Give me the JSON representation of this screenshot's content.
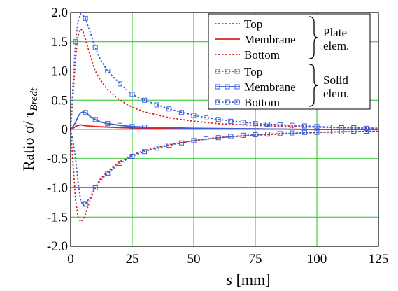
{
  "chart_data": {
    "type": "line",
    "title": "",
    "xlabel": "s",
    "xlabel_unit": "[mm]",
    "ylabel_prefix": "Ratio σ/ τ",
    "ylabel_sub": "Bredt",
    "xlim": [
      0,
      125
    ],
    "ylim": [
      -2.0,
      2.0
    ],
    "x_ticks": [
      0,
      25,
      50,
      75,
      100,
      125
    ],
    "y_ticks": [
      -2.0,
      -1.5,
      -1.0,
      -0.5,
      0,
      0.5,
      1.0,
      1.5,
      2.0
    ],
    "x_tick_labels": [
      "0",
      "25",
      "50",
      "75",
      "100",
      "125"
    ],
    "y_tick_labels": [
      "-2.0",
      "-1.5",
      "-1.0",
      "-0.5",
      "0",
      "0.5",
      "1.0",
      "1.5",
      "2.0"
    ],
    "grid": true,
    "legend_position": "top-right",
    "legend_groups": [
      {
        "label_line1": "Plate",
        "label_line2": "elem."
      },
      {
        "label_line1": "Solid",
        "label_line2": "elem."
      }
    ],
    "series": [
      {
        "name": "Top",
        "group": 0,
        "color": "#e02020",
        "style": "dotted",
        "marker": "none",
        "x": [
          0,
          1,
          2,
          3,
          4,
          5,
          6,
          8,
          10,
          12,
          15,
          20,
          25,
          30,
          40,
          50,
          60,
          75,
          90,
          100,
          110,
          125
        ],
        "y": [
          0,
          0.6,
          1.2,
          1.6,
          1.72,
          1.68,
          1.55,
          1.25,
          1.0,
          0.85,
          0.68,
          0.5,
          0.38,
          0.3,
          0.2,
          0.14,
          0.1,
          0.07,
          0.05,
          0.04,
          0.03,
          0.02
        ]
      },
      {
        "name": "Membrane",
        "group": 0,
        "color": "#e02020",
        "style": "solid",
        "marker": "none",
        "x": [
          0,
          1,
          2,
          3,
          4,
          5,
          7,
          10,
          15,
          20,
          30,
          50,
          75,
          100,
          125
        ],
        "y": [
          0,
          0.02,
          0.05,
          0.07,
          0.08,
          0.07,
          0.06,
          0.05,
          0.04,
          0.03,
          0.02,
          0.01,
          0.01,
          0.0,
          0.0
        ]
      },
      {
        "name": "Bottom",
        "group": 0,
        "color": "#e02020",
        "style": "dotted",
        "marker": "none",
        "x": [
          0,
          1,
          2,
          3,
          4,
          5,
          6,
          8,
          10,
          12,
          15,
          20,
          25,
          30,
          40,
          50,
          60,
          75,
          90,
          100,
          110,
          125
        ],
        "y": [
          0,
          -0.6,
          -1.2,
          -1.5,
          -1.58,
          -1.55,
          -1.45,
          -1.2,
          -1.0,
          -0.85,
          -0.72,
          -0.55,
          -0.44,
          -0.36,
          -0.26,
          -0.19,
          -0.14,
          -0.1,
          -0.07,
          -0.05,
          -0.04,
          -0.03
        ]
      },
      {
        "name": "Top",
        "group": 1,
        "color": "#3a5ed8",
        "style": "dotted",
        "marker": "square",
        "x": [
          0,
          1,
          2,
          3,
          4,
          5,
          6,
          8,
          10,
          12,
          15,
          20,
          25,
          30,
          40,
          50,
          60,
          75,
          90,
          100,
          110,
          125
        ],
        "y": [
          0,
          0.8,
          1.5,
          1.85,
          1.98,
          1.95,
          1.9,
          1.65,
          1.4,
          1.2,
          1.0,
          0.78,
          0.6,
          0.5,
          0.35,
          0.24,
          0.17,
          0.1,
          0.07,
          0.05,
          0.03,
          0.02
        ],
        "markers_x": [
          2,
          6,
          10,
          15,
          20,
          25,
          30,
          35,
          40,
          45,
          50,
          55,
          60,
          65,
          70,
          75,
          80,
          85,
          90,
          95,
          100,
          105,
          110,
          115,
          120
        ],
        "markers_y": [
          1.5,
          1.9,
          1.4,
          1.0,
          0.78,
          0.6,
          0.5,
          0.42,
          0.35,
          0.29,
          0.24,
          0.2,
          0.17,
          0.14,
          0.12,
          0.1,
          0.09,
          0.08,
          0.07,
          0.06,
          0.05,
          0.04,
          0.03,
          0.03,
          0.02
        ]
      },
      {
        "name": "Membrane",
        "group": 1,
        "color": "#3a5ed8",
        "style": "solid",
        "marker": "square",
        "x": [
          0,
          1,
          2,
          3,
          4,
          5,
          6,
          7,
          8,
          10,
          12,
          15,
          20,
          25,
          30,
          40,
          50,
          75,
          100,
          125
        ],
        "y": [
          0,
          0.05,
          0.12,
          0.22,
          0.28,
          0.3,
          0.29,
          0.26,
          0.22,
          0.17,
          0.13,
          0.1,
          0.07,
          0.05,
          0.04,
          0.03,
          0.02,
          0.01,
          0.0,
          0.0
        ],
        "markers_x": [
          6,
          10,
          15,
          20,
          25,
          30
        ],
        "markers_y": [
          0.29,
          0.17,
          0.1,
          0.07,
          0.05,
          0.04
        ]
      },
      {
        "name": "Bottom",
        "group": 1,
        "color": "#3a5ed8",
        "style": "dotted",
        "marker": "square",
        "x": [
          0,
          1,
          2,
          3,
          4,
          5,
          6,
          8,
          10,
          12,
          15,
          20,
          25,
          30,
          40,
          50,
          60,
          75,
          90,
          100,
          110,
          125
        ],
        "y": [
          0,
          -0.2,
          -0.5,
          -0.9,
          -1.2,
          -1.3,
          -1.28,
          -1.15,
          -1.0,
          -0.88,
          -0.75,
          -0.58,
          -0.46,
          -0.38,
          -0.27,
          -0.19,
          -0.14,
          -0.09,
          -0.06,
          -0.05,
          -0.04,
          -0.03
        ],
        "markers_x": [
          6,
          10,
          15,
          20,
          25,
          30,
          35,
          40,
          45,
          50,
          55,
          60,
          65,
          70,
          75,
          80,
          85,
          90,
          95,
          100,
          105,
          110,
          115,
          120
        ],
        "markers_y": [
          -1.28,
          -1.0,
          -0.75,
          -0.58,
          -0.46,
          -0.38,
          -0.32,
          -0.27,
          -0.23,
          -0.19,
          -0.16,
          -0.14,
          -0.12,
          -0.1,
          -0.09,
          -0.08,
          -0.07,
          -0.06,
          -0.05,
          -0.05,
          -0.04,
          -0.04,
          -0.03,
          -0.03
        ]
      }
    ]
  }
}
